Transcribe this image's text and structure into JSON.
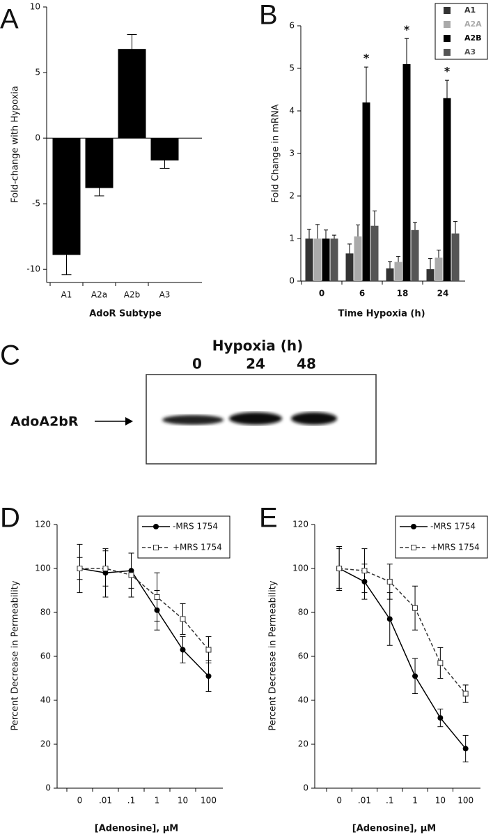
{
  "chart_data": [
    {
      "type": "bar",
      "panel": "A",
      "x_label": "AdoR Subtype",
      "y_label": "Fold-change with Hypoxia",
      "categories": [
        "A1",
        "A2a",
        "A2b",
        "A3"
      ],
      "values": [
        -8.9,
        -3.8,
        6.8,
        -1.7
      ],
      "errors": [
        1.5,
        0.6,
        1.1,
        0.6
      ],
      "color": "#000000",
      "ylim": [
        -11,
        10
      ],
      "yticks": [
        -10,
        -5,
        0,
        5,
        10
      ]
    },
    {
      "type": "bar",
      "panel": "B",
      "x_label": "Time Hypoxia (h)",
      "y_label": "Fold Change in mRNA",
      "categories": [
        "0",
        "6",
        "18",
        "24"
      ],
      "ylim": [
        0,
        6
      ],
      "yticks": [
        0,
        1,
        2,
        3,
        4,
        5,
        6
      ],
      "legend": "top-right",
      "series": [
        {
          "name": "A1",
          "color": "#333333",
          "values": [
            1,
            0.65,
            0.3,
            0.28
          ],
          "errors": [
            0.22,
            0.22,
            0.16,
            0.25
          ]
        },
        {
          "name": "A2A",
          "color": "#aaaaaa",
          "values": [
            1,
            1.05,
            0.45,
            0.55
          ],
          "errors": [
            0.33,
            0.27,
            0.13,
            0.18
          ]
        },
        {
          "name": "A2B",
          "color": "#000000",
          "values": [
            1,
            4.2,
            5.1,
            4.3
          ],
          "errors": [
            0.2,
            0.83,
            0.6,
            0.42
          ],
          "annotations": [
            null,
            "*",
            "*",
            "*"
          ]
        },
        {
          "name": "A3",
          "color": "#555555",
          "values": [
            1,
            1.3,
            1.2,
            1.12
          ],
          "errors": [
            0.08,
            0.35,
            0.18,
            0.28
          ]
        }
      ]
    },
    {
      "type": "line",
      "panel": "D",
      "x_label": "[Adenosine], µM",
      "y_label": "Percent Decrease in Permeability",
      "categories": [
        "0",
        ".01",
        ".1",
        "1",
        "10",
        "100"
      ],
      "ylim": [
        0,
        120
      ],
      "yticks": [
        0,
        20,
        40,
        60,
        80,
        100,
        120
      ],
      "legend": "top-right",
      "series": [
        {
          "name": "-MRS 1754",
          "color": "#000000",
          "line_style": "solid",
          "marker": "circle-filled",
          "values": [
            100,
            98,
            99,
            81,
            63,
            51
          ],
          "errors": [
            11,
            11,
            8,
            9,
            6,
            7
          ]
        },
        {
          "name": "+MRS 1754",
          "color": "#333333",
          "line_style": "dashed",
          "marker": "square-open",
          "values": [
            100,
            100,
            97,
            87,
            77,
            63
          ],
          "errors": [
            5,
            8,
            10,
            11,
            7,
            6
          ]
        }
      ]
    },
    {
      "type": "line",
      "panel": "E",
      "x_label": "[Adenosine], µM",
      "y_label": "Percent Decrease in Permeability",
      "categories": [
        "0",
        ".01",
        ".1",
        "1",
        "10",
        "100"
      ],
      "ylim": [
        0,
        120
      ],
      "yticks": [
        0,
        20,
        40,
        60,
        80,
        100,
        120
      ],
      "legend": "top-right",
      "series": [
        {
          "name": "-MRS 1754",
          "color": "#000000",
          "line_style": "solid",
          "marker": "circle-filled",
          "values": [
            100,
            94,
            77,
            51,
            32,
            18
          ],
          "errors": [
            9,
            8,
            12,
            8,
            4,
            6
          ]
        },
        {
          "name": "+MRS 1754",
          "color": "#333333",
          "line_style": "dashed",
          "marker": "square-open",
          "values": [
            100,
            99,
            94,
            82,
            57,
            43
          ],
          "errors": [
            10,
            10,
            8,
            10,
            7,
            4
          ]
        }
      ]
    }
  ],
  "panel_c": {
    "panel": "C",
    "title": "Hypoxia (h)",
    "lanes": [
      "0",
      "24",
      "48"
    ],
    "label": "AdoA2bR"
  }
}
